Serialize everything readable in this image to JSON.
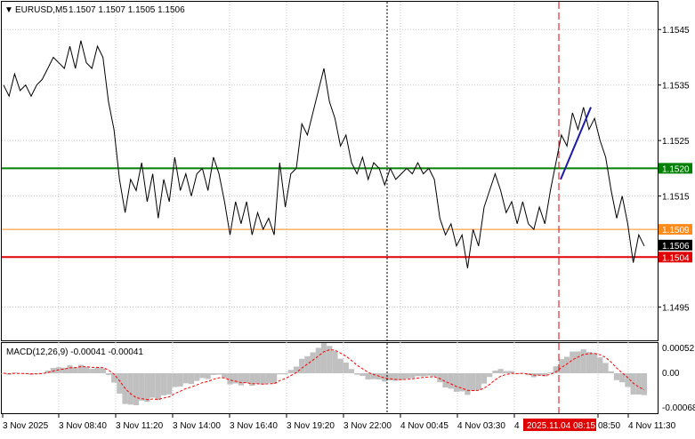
{
  "header": {
    "symbol": "EURUSD,M5",
    "ohlc": "1.1507 1.1507 1.1505 1.1506",
    "menu_glyph": "▼"
  },
  "macd_panel": {
    "title": "MACD(12,26,9) -0.00041 -0.00041",
    "axis_labels": [
      "0.00052",
      "0.00",
      "-0.00068"
    ],
    "colors": {
      "histogram": "#c0c0c0",
      "signal": "#ff0000"
    }
  },
  "price_axis": {
    "tick_labels": [
      "1.1545",
      "1.1535",
      "1.1525",
      "1.1515",
      "1.1495"
    ]
  },
  "levels": [
    {
      "id": "green",
      "price": 1.152,
      "label": "1.1520",
      "color": "#008000",
      "label_bg": "#008000",
      "label_color": "#ffffff"
    },
    {
      "id": "orange",
      "price": 1.1509,
      "label": "1.1509",
      "color": "#ff8c1a",
      "label_bg": "#ff8c1a",
      "label_color": "#ffffff"
    },
    {
      "id": "current",
      "price": 1.1506,
      "label": "1.1506",
      "color": "#000000",
      "label_bg": "#000000",
      "label_color": "#ffffff"
    },
    {
      "id": "red",
      "price": 1.1504,
      "label": "1.1504",
      "color": "#e00000",
      "label_bg": "#e00000",
      "label_color": "#ffffff"
    }
  ],
  "time_axis": {
    "labels": [
      "3 Nov 2025",
      "3 Nov 08:40",
      "3 Nov 11:20",
      "3 Nov 14:00",
      "3 Nov 16:40",
      "3 Nov 19:20",
      "3 Nov 22:00",
      "4 Nov 00:45",
      "4 Nov 03:30",
      "4",
      "08:50",
      "4 Nov 11:30"
    ],
    "highlight_label": "2025.11.04 08:15",
    "highlight_color": "#e00000"
  },
  "chart_data": {
    "type": "line",
    "title": "EURUSD,M5",
    "ylim": [
      1.1489,
      1.155
    ],
    "grid": true,
    "series": [
      {
        "values": [
          1.1535,
          1.1533,
          1.1537,
          1.1534,
          1.1535,
          1.1533,
          1.1535,
          1.1536,
          1.1538,
          1.154,
          1.1539,
          1.1538,
          1.1542,
          1.1538,
          1.1543,
          1.1539,
          1.1538,
          1.1542,
          1.154,
          1.1532,
          1.1527,
          1.1518,
          1.1512,
          1.1518,
          1.1516,
          1.1521,
          1.1514,
          1.1519,
          1.1511,
          1.1518,
          1.1514,
          1.1522,
          1.1516,
          1.1519,
          1.1515,
          1.1519,
          1.152,
          1.1516,
          1.1522,
          1.1519,
          1.1514,
          1.1508,
          1.1514,
          1.151,
          1.1514,
          1.1508,
          1.1512,
          1.1509,
          1.1511,
          1.1508,
          1.1521,
          1.1513,
          1.1519,
          1.152,
          1.1528,
          1.1526,
          1.153,
          1.1534,
          1.1538,
          1.1532,
          1.1529,
          1.1524,
          1.1526,
          1.1521,
          1.1519,
          1.1522,
          1.1518,
          1.1521,
          1.152,
          1.1517,
          1.152,
          1.1518,
          1.1519,
          1.152,
          1.1519,
          1.1521,
          1.1519,
          1.152,
          1.1518,
          1.1511,
          1.1508,
          1.151,
          1.1506,
          1.1508,
          1.1502,
          1.1509,
          1.1506,
          1.1513,
          1.1516,
          1.1519,
          1.1516,
          1.1512,
          1.1514,
          1.151,
          1.1514,
          1.151,
          1.1509,
          1.1513,
          1.151,
          1.1516,
          1.1521,
          1.1526,
          1.1524,
          1.153,
          1.1527,
          1.1531,
          1.1527,
          1.1529,
          1.1525,
          1.1522,
          1.1516,
          1.1511,
          1.1515,
          1.151,
          1.1503,
          1.1508,
          1.1506
        ]
      }
    ],
    "annotations": [
      {
        "type": "trendline",
        "color": "#1a1aa8",
        "from_price": 1.1518,
        "to_price": 1.1531
      },
      {
        "type": "vline",
        "style": "dashed",
        "color": "#e00000",
        "time": "2025.11.04 08:15"
      },
      {
        "type": "vline",
        "style": "dotted",
        "color": "#000000"
      }
    ]
  }
}
